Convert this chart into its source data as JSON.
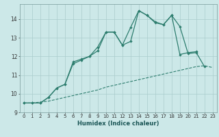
{
  "xlabel": "Humidex (Indice chaleur)",
  "bg_color": "#cce8e8",
  "grid_color": "#aacccc",
  "line_color": "#2d7d6e",
  "xlim": [
    -0.5,
    23.5
  ],
  "ylim": [
    9,
    14.8
  ],
  "yticks": [
    9,
    10,
    11,
    12,
    13,
    14
  ],
  "xticks": [
    0,
    1,
    2,
    3,
    4,
    5,
    6,
    7,
    8,
    9,
    10,
    11,
    12,
    13,
    14,
    15,
    16,
    17,
    18,
    19,
    20,
    21,
    22,
    23
  ],
  "series1_x": [
    0,
    1,
    2,
    3,
    4,
    5,
    6,
    7,
    8,
    9,
    10,
    11,
    12,
    13,
    14,
    15,
    16,
    17,
    18,
    19,
    20,
    21,
    22,
    23
  ],
  "series1_y": [
    9.5,
    9.5,
    9.55,
    9.6,
    9.7,
    9.8,
    9.9,
    10.0,
    10.1,
    10.2,
    10.35,
    10.45,
    10.55,
    10.65,
    10.75,
    10.85,
    10.95,
    11.05,
    11.15,
    11.25,
    11.35,
    11.45,
    11.5,
    11.4
  ],
  "series2_x": [
    0,
    1,
    2,
    3,
    4,
    5,
    6,
    7,
    8,
    9,
    10,
    11,
    12,
    13,
    14,
    15,
    16,
    17,
    18,
    19,
    20,
    21
  ],
  "series2_y": [
    9.5,
    9.5,
    9.5,
    9.8,
    10.3,
    10.5,
    11.6,
    11.8,
    12.0,
    12.5,
    13.3,
    13.3,
    12.6,
    13.55,
    14.45,
    14.2,
    13.85,
    13.7,
    14.2,
    12.1,
    12.2,
    12.25
  ],
  "series3_x": [
    0,
    1,
    2,
    3,
    4,
    5,
    6,
    7,
    8,
    9,
    10,
    11,
    12,
    13,
    14,
    15,
    16,
    17,
    18,
    19,
    20,
    21,
    22
  ],
  "series3_y": [
    9.5,
    9.5,
    9.5,
    9.8,
    10.3,
    10.5,
    11.7,
    11.85,
    12.0,
    12.3,
    13.3,
    13.3,
    12.6,
    12.8,
    14.45,
    14.2,
    13.8,
    13.7,
    14.2,
    13.6,
    12.15,
    12.2,
    11.45
  ],
  "xlabel_fontsize": 6,
  "tick_fontsize": 5,
  "xlabel_color": "#1a5555"
}
